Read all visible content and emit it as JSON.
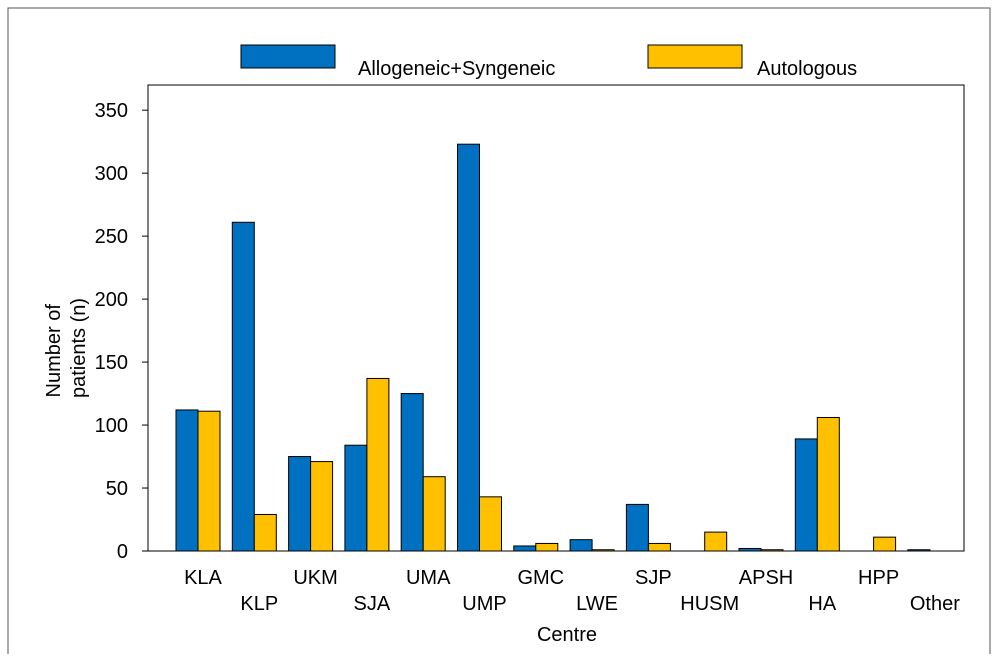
{
  "chart_data": {
    "type": "bar",
    "x_label": "Centre",
    "y_label": [
      "Number of",
      "patients (n)"
    ],
    "categories": [
      "KLA",
      "KLP",
      "UKM",
      "SJA",
      "UMA",
      "UMP",
      "GMC",
      "LWE",
      "SJP",
      "HUSM",
      "APSH",
      "HA",
      "HPP",
      "Other"
    ],
    "series": [
      {
        "name": "Allogeneic+Syngeneic",
        "color": "#0070c0",
        "values": [
          112,
          261,
          75,
          84,
          125,
          323,
          4,
          9,
          37,
          0,
          2,
          89,
          0,
          1
        ]
      },
      {
        "name": "Autologous",
        "color": "#ffc000",
        "values": [
          111,
          29,
          71,
          137,
          59,
          43,
          6,
          1,
          6,
          15,
          1,
          106,
          11,
          0
        ]
      }
    ],
    "ylim": [
      0,
      370
    ],
    "yticks": [
      0,
      50,
      100,
      150,
      200,
      250,
      300,
      350
    ],
    "legend": "top"
  }
}
